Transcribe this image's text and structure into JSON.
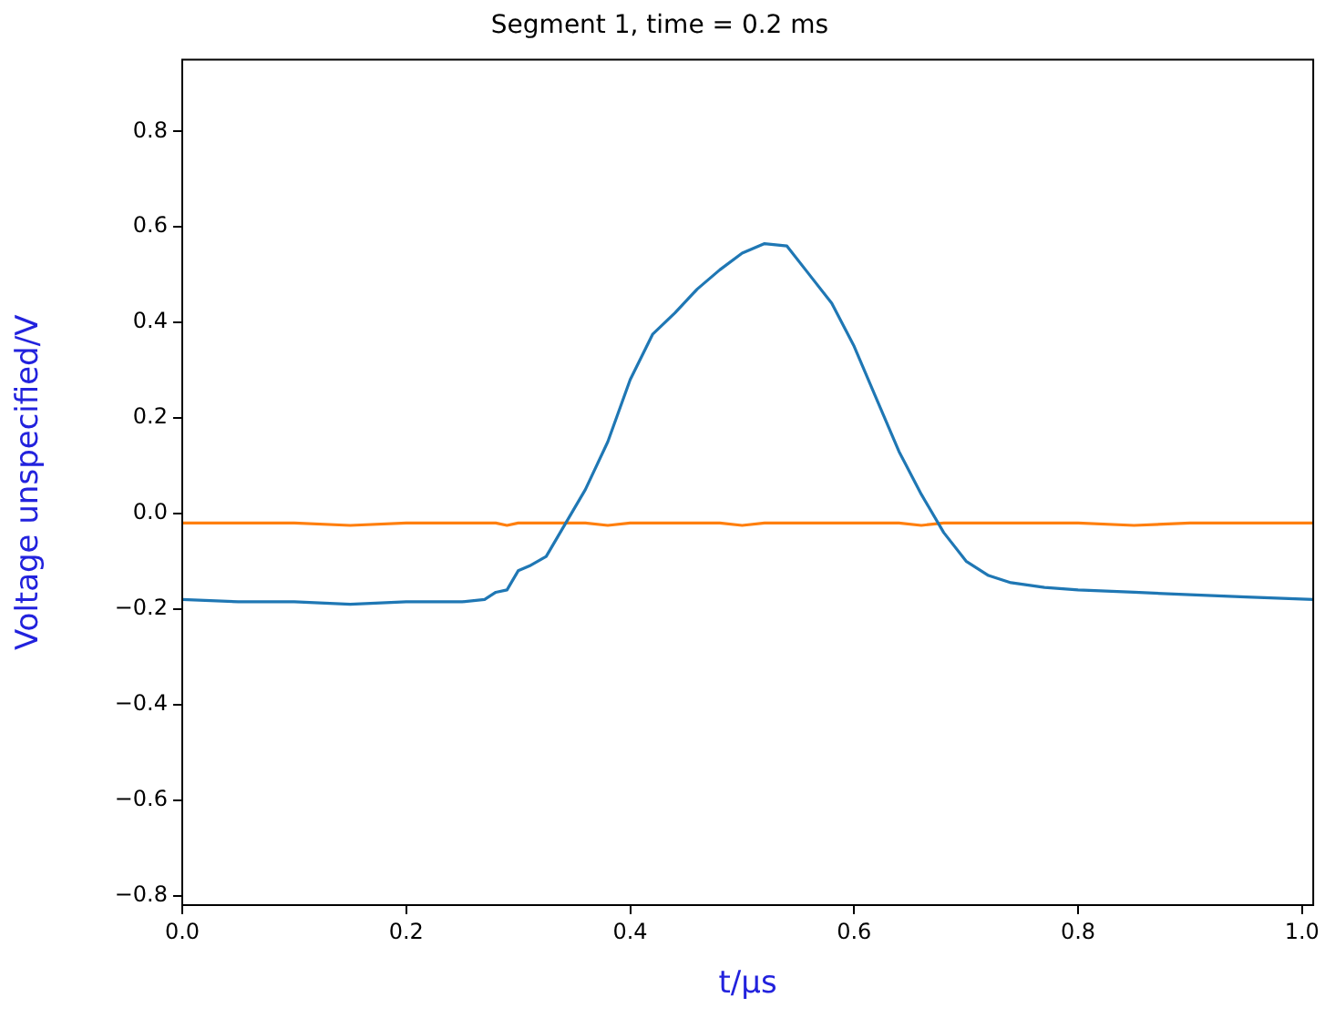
{
  "chart_data": {
    "type": "line",
    "title": "Segment 1, time = 0.2 ms",
    "xlabel": "t/μs",
    "ylabel": "Voltage unspecified/V",
    "x": [
      0,
      0.05,
      0.1,
      0.15,
      0.2,
      0.25,
      0.27,
      0.28,
      0.29,
      0.3,
      0.31,
      0.325,
      0.34,
      0.36,
      0.38,
      0.4,
      0.42,
      0.44,
      0.46,
      0.48,
      0.5,
      0.52,
      0.54,
      0.56,
      0.58,
      0.6,
      0.62,
      0.64,
      0.66,
      0.68,
      0.7,
      0.72,
      0.74,
      0.77,
      0.8,
      0.85,
      0.9,
      0.95,
      1.01
    ],
    "series": [
      {
        "color": "#1f77b4",
        "values": [
          -0.18,
          -0.185,
          -0.185,
          -0.19,
          -0.185,
          -0.185,
          -0.18,
          -0.165,
          -0.16,
          -0.12,
          -0.11,
          -0.09,
          -0.03,
          0.05,
          0.15,
          0.28,
          0.375,
          0.42,
          0.47,
          0.51,
          0.545,
          0.565,
          0.56,
          0.5,
          0.44,
          0.35,
          0.24,
          0.13,
          0.04,
          -0.04,
          -0.1,
          -0.13,
          -0.145,
          -0.155,
          -0.16,
          -0.165,
          -0.17,
          -0.175,
          -0.18
        ]
      },
      {
        "color": "#ff7f0e",
        "values": [
          -0.02,
          -0.02,
          -0.02,
          -0.025,
          -0.02,
          -0.02,
          -0.02,
          -0.02,
          -0.025,
          -0.02,
          -0.02,
          -0.02,
          -0.02,
          -0.02,
          -0.025,
          -0.02,
          -0.02,
          -0.02,
          -0.02,
          -0.02,
          -0.025,
          -0.02,
          -0.02,
          -0.02,
          -0.02,
          -0.02,
          -0.02,
          -0.02,
          -0.025,
          -0.02,
          -0.02,
          -0.02,
          -0.02,
          -0.02,
          -0.02,
          -0.025,
          -0.02,
          -0.02,
          -0.02
        ]
      }
    ],
    "xlim": [
      0,
      1.01
    ],
    "ylim": [
      -0.82,
      0.95
    ],
    "xticks": [
      {
        "value": 0,
        "label": "0.0"
      },
      {
        "value": 0.2,
        "label": "0.2"
      },
      {
        "value": 0.4,
        "label": "0.4"
      },
      {
        "value": 0.6,
        "label": "0.6"
      },
      {
        "value": 0.8,
        "label": "0.8"
      },
      {
        "value": 1,
        "label": "1.0"
      }
    ],
    "yticks": [
      {
        "value": -0.8,
        "label": "−0.8"
      },
      {
        "value": -0.6,
        "label": "−0.6"
      },
      {
        "value": -0.4,
        "label": "−0.4"
      },
      {
        "value": -0.2,
        "label": "−0.2"
      },
      {
        "value": 0,
        "label": "0.0"
      },
      {
        "value": 0.2,
        "label": "0.2"
      },
      {
        "value": 0.4,
        "label": "0.4"
      },
      {
        "value": 0.6,
        "label": "0.6"
      },
      {
        "value": 0.8,
        "label": "0.8"
      }
    ],
    "grid": false,
    "legend": false,
    "marker": "none",
    "line_style": "solid"
  }
}
